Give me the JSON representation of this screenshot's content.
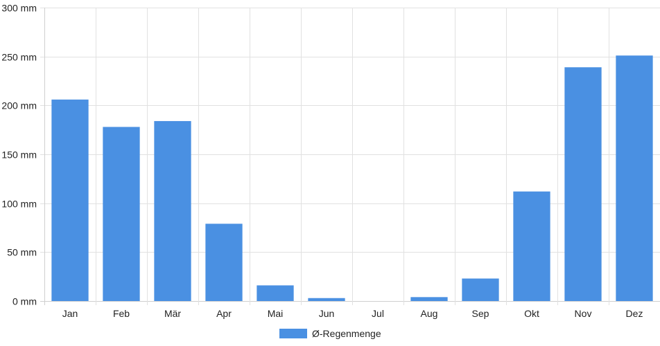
{
  "chart_data": {
    "type": "bar",
    "categories": [
      "Jan",
      "Feb",
      "Mär",
      "Apr",
      "Mai",
      "Jun",
      "Jul",
      "Aug",
      "Sep",
      "Okt",
      "Nov",
      "Dez"
    ],
    "series": [
      {
        "name": "Ø-Regenmenge",
        "values": [
          206,
          178,
          184,
          79,
          16,
          3,
          0,
          4,
          23,
          112,
          239,
          251
        ],
        "color": "#4a90e2"
      }
    ],
    "y_ticks": [
      "0 mm",
      "50 mm",
      "100 mm",
      "150 mm",
      "200 mm",
      "250 mm",
      "300 mm"
    ],
    "y_tick_values": [
      0,
      50,
      100,
      150,
      200,
      250,
      300
    ],
    "ylim": [
      0,
      300
    ],
    "grid": true,
    "legend_position": "bottom-center"
  }
}
